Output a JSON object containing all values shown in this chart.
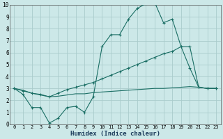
{
  "xlabel": "Humidex (Indice chaleur)",
  "bg_color": "#cce8e8",
  "grid_color": "#aacccc",
  "line_color": "#1a6e64",
  "xlim": [
    -0.5,
    23.5
  ],
  "ylim": [
    0,
    10
  ],
  "yticks": [
    0,
    1,
    2,
    3,
    4,
    5,
    6,
    7,
    8,
    9,
    10
  ],
  "xticks": [
    0,
    1,
    2,
    3,
    4,
    5,
    6,
    7,
    8,
    9,
    10,
    11,
    12,
    13,
    14,
    15,
    16,
    17,
    18,
    19,
    20,
    21,
    22,
    23
  ],
  "line1_x": [
    0,
    1,
    2,
    3,
    4,
    5,
    6,
    7,
    8,
    9,
    10,
    11,
    12,
    13,
    14,
    15,
    16,
    17,
    18,
    19,
    20,
    21,
    22,
    23
  ],
  "line1_y": [
    3.0,
    2.5,
    1.4,
    1.4,
    0.1,
    0.5,
    1.4,
    1.5,
    1.0,
    2.3,
    6.5,
    7.5,
    7.5,
    8.8,
    9.7,
    10.1,
    10.2,
    8.5,
    8.8,
    6.5,
    4.7,
    3.1,
    3.0,
    3.0
  ],
  "line2_x": [
    0,
    1,
    2,
    3,
    4,
    5,
    6,
    7,
    8,
    9,
    10,
    11,
    12,
    13,
    14,
    15,
    16,
    17,
    18,
    19,
    20,
    21,
    22,
    23
  ],
  "line2_y": [
    3.0,
    2.8,
    2.6,
    2.5,
    2.3,
    2.6,
    2.9,
    3.1,
    3.3,
    3.5,
    3.8,
    4.1,
    4.4,
    4.7,
    5.0,
    5.3,
    5.6,
    5.9,
    6.1,
    6.5,
    6.5,
    3.1,
    3.0,
    3.0
  ],
  "line3_x": [
    0,
    1,
    2,
    3,
    4,
    5,
    6,
    7,
    8,
    9,
    10,
    11,
    12,
    13,
    14,
    15,
    16,
    17,
    18,
    19,
    20,
    21,
    22,
    23
  ],
  "line3_y": [
    3.0,
    2.85,
    2.6,
    2.45,
    2.3,
    2.35,
    2.45,
    2.55,
    2.55,
    2.65,
    2.7,
    2.75,
    2.8,
    2.85,
    2.9,
    2.95,
    3.0,
    3.0,
    3.05,
    3.1,
    3.15,
    3.1,
    3.0,
    3.0
  ]
}
